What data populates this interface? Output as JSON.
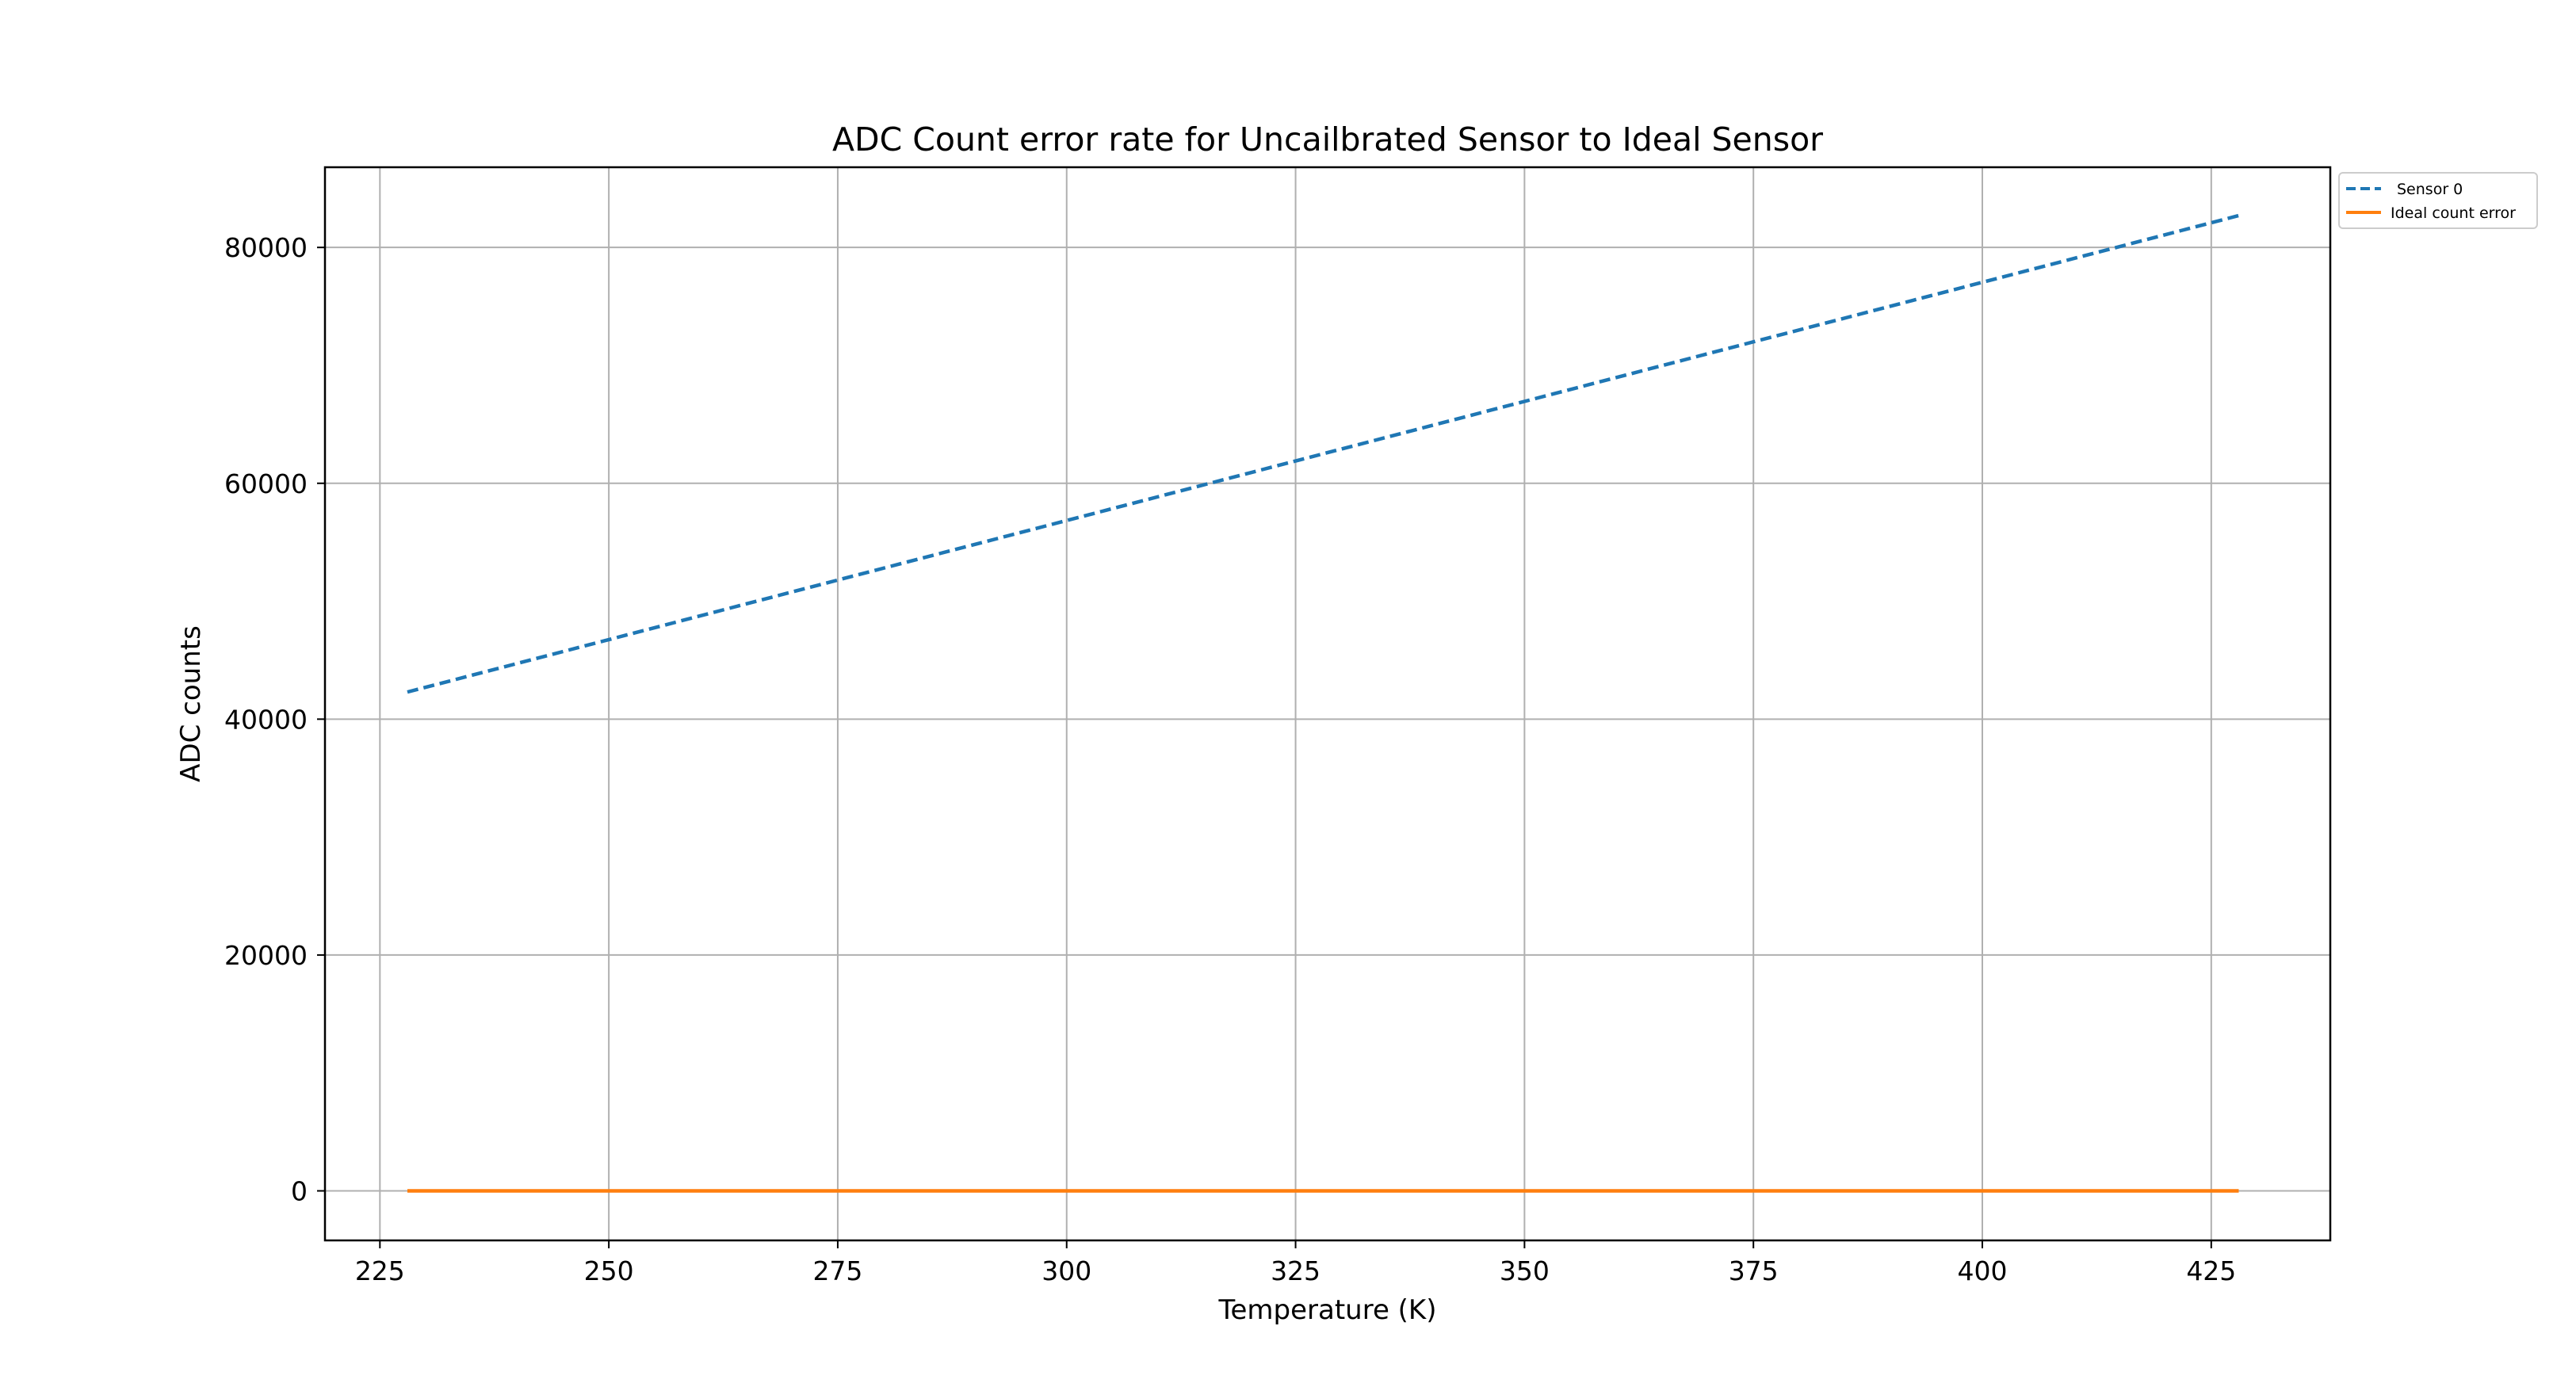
{
  "chart_data": {
    "type": "line",
    "title": "ADC Count error rate for Uncailbrated Sensor to Ideal Sensor",
    "xlabel": "Temperature (K)",
    "ylabel": "ADC counts",
    "xlim": [
      219,
      438
    ],
    "ylim": [
      -4200,
      86800
    ],
    "xticks": [
      225,
      250,
      275,
      300,
      325,
      350,
      375,
      400,
      425
    ],
    "xtick_labels": [
      "225",
      "250",
      "275",
      "300",
      "325",
      "350",
      "375",
      "400",
      "425"
    ],
    "yticks": [
      0,
      20000,
      40000,
      60000,
      80000
    ],
    "ytick_labels": [
      "0",
      "20000",
      "40000",
      "60000",
      "80000"
    ],
    "grid": true,
    "legend_position": "outside-top-right",
    "series": [
      {
        "name": "Sensor 0",
        "color": "#1f77b4",
        "style": "dashed",
        "x": [
          228,
          428
        ],
        "y": [
          42300,
          82700
        ]
      },
      {
        "name": "Ideal count error",
        "color": "#ff7f0e",
        "style": "solid",
        "x": [
          228,
          428
        ],
        "y": [
          0,
          0
        ]
      }
    ]
  }
}
